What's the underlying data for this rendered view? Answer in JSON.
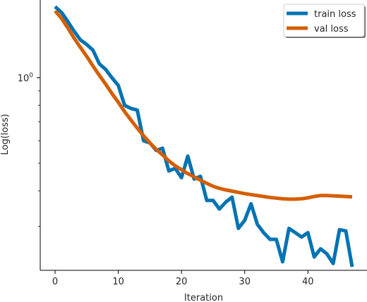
{
  "chart_data": {
    "type": "line",
    "title": "",
    "xlabel": "Iteration",
    "ylabel": "Log(loss)",
    "yscale": "log",
    "xlim": [
      -2.35,
      49.35
    ],
    "ylim": [
      0.21,
      1.9
    ],
    "x_ticks": [
      0,
      10,
      20,
      30,
      40
    ],
    "y_ticks": [
      {
        "value": 1.0,
        "label": "10^0"
      }
    ],
    "grid": false,
    "legend": {
      "placement": "top-right"
    },
    "x": [
      0,
      1,
      2,
      3,
      4,
      5,
      6,
      7,
      8,
      9,
      10,
      11,
      12,
      13,
      14,
      15,
      16,
      17,
      18,
      19,
      20,
      21,
      22,
      23,
      24,
      25,
      26,
      27,
      28,
      29,
      30,
      31,
      32,
      33,
      34,
      35,
      36,
      37,
      38,
      39,
      40,
      41,
      42,
      43,
      44,
      45,
      46,
      47
    ],
    "series": [
      {
        "name": "train loss",
        "color": "#0173b2",
        "values": [
          1.78,
          1.7,
          1.58,
          1.46,
          1.36,
          1.31,
          1.25,
          1.12,
          1.07,
          1.0,
          0.94,
          0.8,
          0.78,
          0.77,
          0.6,
          0.59,
          0.555,
          0.565,
          0.47,
          0.48,
          0.445,
          0.53,
          0.44,
          0.45,
          0.37,
          0.37,
          0.345,
          0.365,
          0.38,
          0.295,
          0.315,
          0.36,
          0.305,
          0.285,
          0.27,
          0.27,
          0.225,
          0.295,
          0.285,
          0.275,
          0.285,
          0.234,
          0.25,
          0.24,
          0.222,
          0.292,
          0.289,
          0.216
        ]
      },
      {
        "name": "val loss",
        "color": "#d55e00",
        "values": [
          1.72,
          1.62,
          1.5,
          1.38,
          1.28,
          1.19,
          1.1,
          1.02,
          0.95,
          0.88,
          0.82,
          0.76,
          0.71,
          0.665,
          0.625,
          0.59,
          0.56,
          0.535,
          0.51,
          0.49,
          0.475,
          0.46,
          0.448,
          0.436,
          0.425,
          0.415,
          0.408,
          0.403,
          0.399,
          0.395,
          0.391,
          0.388,
          0.385,
          0.382,
          0.379,
          0.377,
          0.375,
          0.374,
          0.374,
          0.375,
          0.378,
          0.382,
          0.385,
          0.385,
          0.384,
          0.383,
          0.382,
          0.381
        ]
      }
    ]
  }
}
